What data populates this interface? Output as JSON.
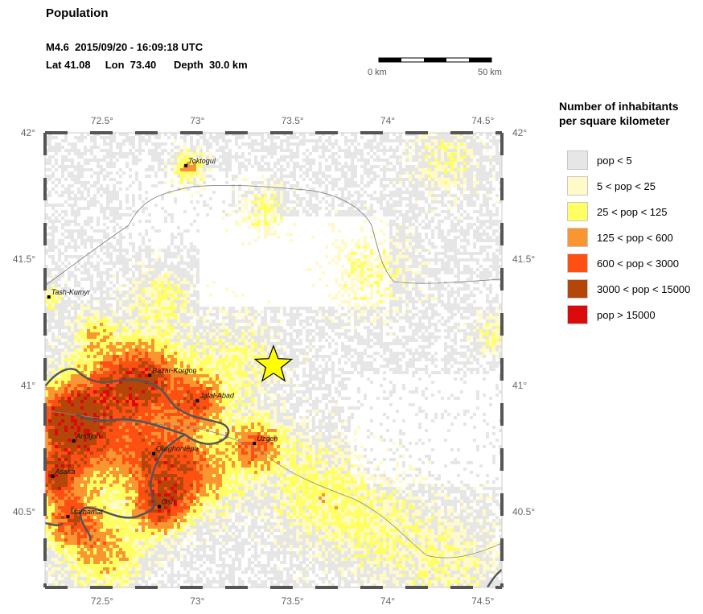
{
  "header": {
    "title": "Population",
    "event_line": "M4.6  2015/09/20 - 16:09:18 UTC",
    "location_line": "Lat 41.08     Lon  73.40      Depth  30.0 km"
  },
  "scale_bar": {
    "start_label": "0 km",
    "end_label": "50 km"
  },
  "map": {
    "lon_range": [
      72.2,
      74.6
    ],
    "lat_range": [
      40.2,
      42.0
    ],
    "lon_ticks": [
      {
        "value": 72.5,
        "label": "72.5°"
      },
      {
        "value": 73.0,
        "label": "73°"
      },
      {
        "value": 73.5,
        "label": "73.5°"
      },
      {
        "value": 74.0,
        "label": "74°"
      },
      {
        "value": 74.5,
        "label": "74.5°"
      }
    ],
    "lat_ticks": [
      {
        "value": 42.0,
        "label": "42°"
      },
      {
        "value": 41.5,
        "label": "41.5°"
      },
      {
        "value": 41.0,
        "label": "41°"
      },
      {
        "value": 40.5,
        "label": "40.5°"
      }
    ],
    "epicenter": {
      "lat": 41.08,
      "lon": 73.4
    },
    "cities": [
      {
        "name": "Toktogul",
        "lat": 41.87,
        "lon": 72.94
      },
      {
        "name": "Tash-Kumyr",
        "lat": 41.35,
        "lon": 72.22
      },
      {
        "name": "Bazar-Korgon",
        "lat": 41.04,
        "lon": 72.75
      },
      {
        "name": "Jalal-Abad",
        "lat": 40.94,
        "lon": 73.0
      },
      {
        "name": "Andijon",
        "lat": 40.78,
        "lon": 72.35
      },
      {
        "name": "Qurghontepa",
        "lat": 40.73,
        "lon": 72.77
      },
      {
        "name": "Uzgen",
        "lat": 40.77,
        "lon": 73.3
      },
      {
        "name": "Asaka",
        "lat": 40.64,
        "lon": 72.24
      },
      {
        "name": "Osh",
        "lat": 40.52,
        "lon": 72.8
      },
      {
        "name": "Marhamat",
        "lat": 40.48,
        "lon": 72.32
      }
    ]
  },
  "legend": {
    "title_line1": "Number of inhabitants",
    "title_line2": "per square kilometer",
    "items": [
      {
        "label": "pop < 5",
        "color": "#e6e6e6"
      },
      {
        "label": "5 < pop < 25",
        "color": "#fffac8"
      },
      {
        "label": "25 < pop < 125",
        "color": "#ffff64"
      },
      {
        "label": "125 < pop < 600",
        "color": "#fa9632"
      },
      {
        "label": "600 < pop < 3000",
        "color": "#ff5014"
      },
      {
        "label": "3000 < pop < 15000",
        "color": "#b4460a"
      },
      {
        "label": "pop > 15000",
        "color": "#dc0a0a"
      }
    ]
  }
}
